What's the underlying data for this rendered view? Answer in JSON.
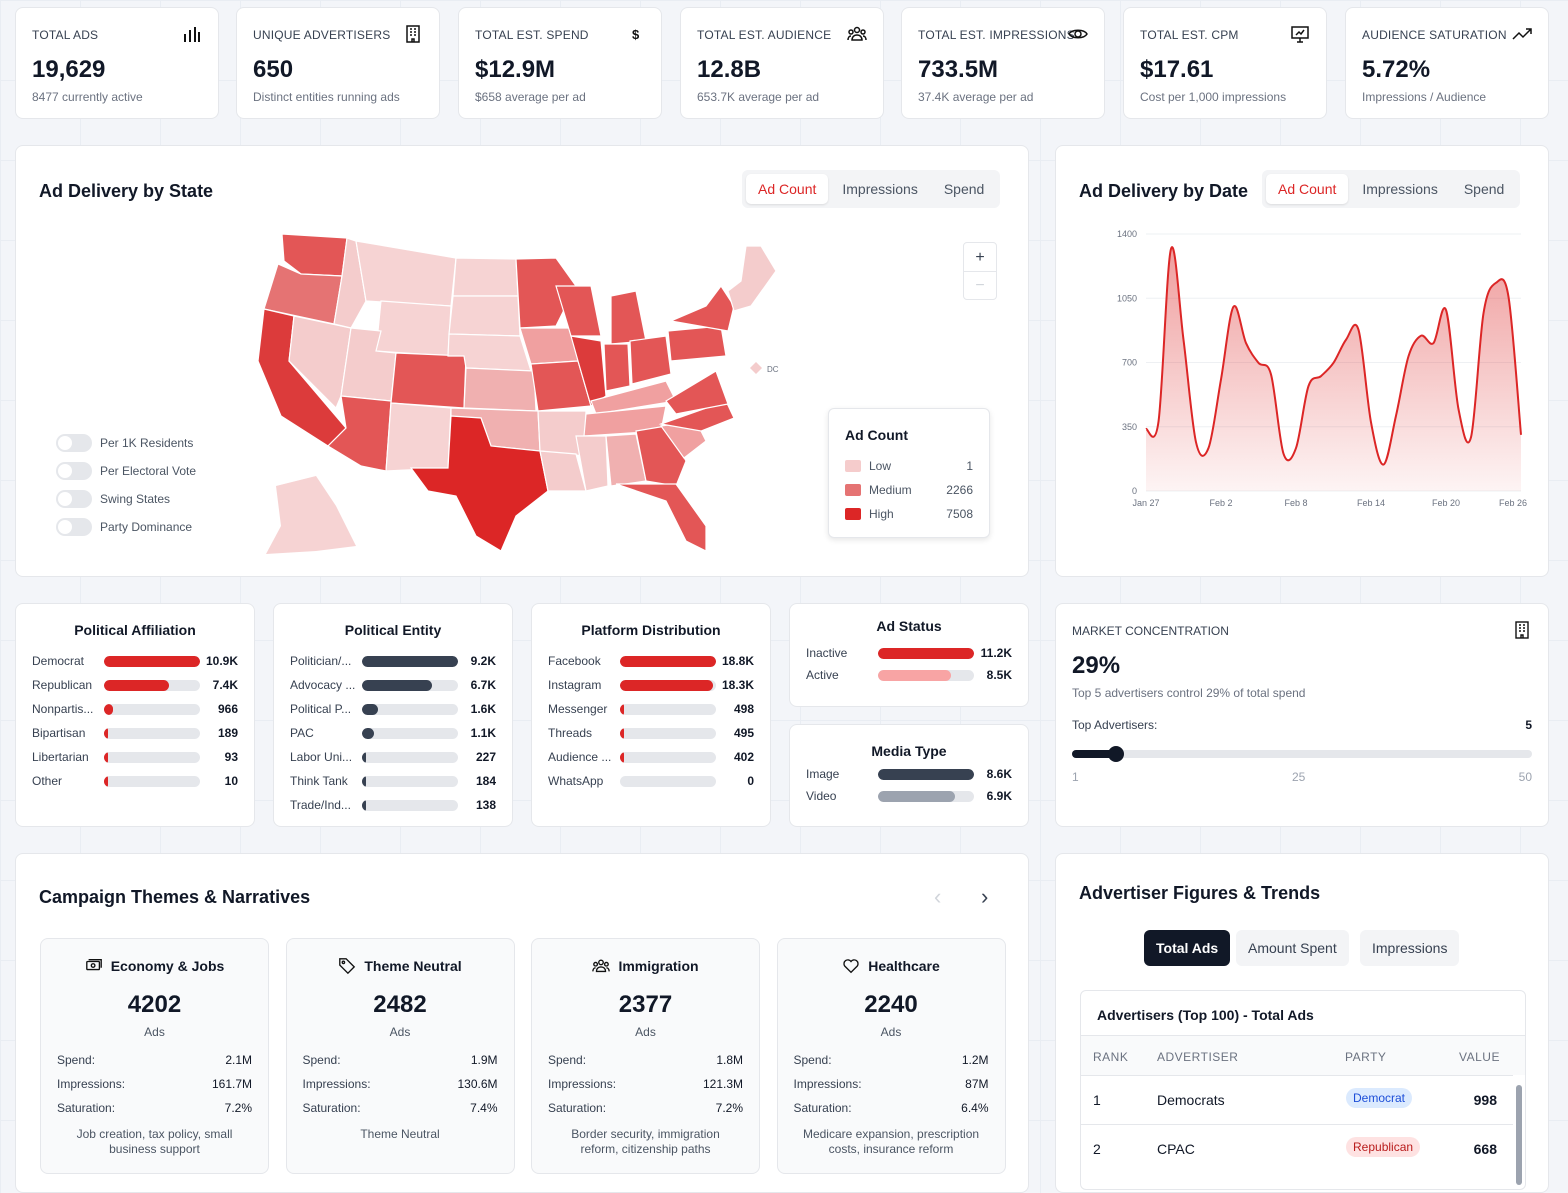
{
  "kpis": [
    {
      "label": "TOTAL ADS",
      "value": "19,629",
      "sub": "8477 currently active",
      "icon": "bar-chart-icon"
    },
    {
      "label": "UNIQUE ADVERTISERS",
      "value": "650",
      "sub": "Distinct entities running ads",
      "icon": "building-icon"
    },
    {
      "label": "TOTAL EST. SPEND",
      "value": "$12.9M",
      "sub": "$658 average per ad",
      "icon": "dollar-icon"
    },
    {
      "label": "TOTAL EST. AUDIENCE",
      "value": "12.8B",
      "sub": "653.7K average per ad",
      "icon": "users-icon"
    },
    {
      "label": "TOTAL EST. IMPRESSIONS",
      "value": "733.5M",
      "sub": "37.4K average per ad",
      "icon": "eye-icon"
    },
    {
      "label": "TOTAL EST. CPM",
      "value": "$17.61",
      "sub": "Cost per 1,000 impressions",
      "icon": "presentation-icon"
    },
    {
      "label": "AUDIENCE SATURATION",
      "value": "5.72%",
      "sub": "Impressions / Audience",
      "icon": "trending-up-icon"
    }
  ],
  "map": {
    "title": "Ad Delivery by State",
    "tabs": [
      "Ad Count",
      "Impressions",
      "Spend"
    ],
    "active_tab": "Ad Count",
    "toggles": [
      "Per 1K Residents",
      "Per Electoral Vote",
      "Swing States",
      "Party Dominance"
    ],
    "zoom_in": "+",
    "zoom_out": "−",
    "dc_label": "DC",
    "legend": {
      "title": "Ad Count",
      "items": [
        {
          "label": "Low",
          "value": "1",
          "color": "#f5cccc"
        },
        {
          "label": "Medium",
          "value": "2266",
          "color": "#e57373"
        },
        {
          "label": "High",
          "value": "7508",
          "color": "#dc2626"
        }
      ]
    }
  },
  "date_chart": {
    "title": "Ad Delivery by Date",
    "tabs": [
      "Ad Count",
      "Impressions",
      "Spend"
    ],
    "active_tab": "Ad Count"
  },
  "chart_data": {
    "type": "area",
    "ylim": [
      0,
      1400
    ],
    "yticks": [
      0,
      350,
      700,
      1050,
      1400
    ],
    "xticks": [
      "Jan 27",
      "Feb 2",
      "Feb 8",
      "Feb 14",
      "Feb 20",
      "Feb 26"
    ],
    "grid": true,
    "color": "#dc2626",
    "x_start": "Jan 27",
    "values": [
      338,
      378,
      1319,
      824,
      266,
      234,
      608,
      1004,
      806,
      698,
      635,
      203,
      234,
      572,
      626,
      698,
      824,
      878,
      374,
      144,
      410,
      734,
      846,
      806,
      986,
      446,
      293,
      968,
      1134,
      1058,
      306
    ]
  },
  "affiliation": {
    "title": "Political Affiliation",
    "color": "#dc2626",
    "items": [
      {
        "label": "Democrat",
        "value": "10.9K",
        "pct": 100
      },
      {
        "label": "Republican",
        "value": "7.4K",
        "pct": 68
      },
      {
        "label": "Nonpartis...",
        "value": "966",
        "pct": 9
      },
      {
        "label": "Bipartisan",
        "value": "189",
        "pct": 2
      },
      {
        "label": "Libertarian",
        "value": "93",
        "pct": 1
      },
      {
        "label": "Other",
        "value": "10",
        "pct": 0.5
      }
    ]
  },
  "entity": {
    "title": "Political Entity",
    "color": "#374151",
    "items": [
      {
        "label": "Politician/...",
        "value": "9.2K",
        "pct": 100
      },
      {
        "label": "Advocacy ...",
        "value": "6.7K",
        "pct": 73
      },
      {
        "label": "Political P...",
        "value": "1.6K",
        "pct": 17
      },
      {
        "label": "PAC",
        "value": "1.1K",
        "pct": 12
      },
      {
        "label": "Labor Uni...",
        "value": "227",
        "pct": 2
      },
      {
        "label": "Think Tank",
        "value": "184",
        "pct": 2
      },
      {
        "label": "Trade/Ind...",
        "value": "138",
        "pct": 1.5
      }
    ]
  },
  "platform": {
    "title": "Platform Distribution",
    "color": "#dc2626",
    "items": [
      {
        "label": "Facebook",
        "value": "18.8K",
        "pct": 100
      },
      {
        "label": "Instagram",
        "value": "18.3K",
        "pct": 97
      },
      {
        "label": "Messenger",
        "value": "498",
        "pct": 3
      },
      {
        "label": "Threads",
        "value": "495",
        "pct": 3
      },
      {
        "label": "Audience ...",
        "value": "402",
        "pct": 2
      },
      {
        "label": "WhatsApp",
        "value": "0",
        "pct": 0
      }
    ]
  },
  "status": {
    "title": "Ad Status",
    "items": [
      {
        "label": "Inactive",
        "value": "11.2K",
        "pct": 100,
        "color": "#dc2626"
      },
      {
        "label": "Active",
        "value": "8.5K",
        "pct": 76,
        "color": "#f8a4a4"
      }
    ]
  },
  "media": {
    "title": "Media Type",
    "items": [
      {
        "label": "Image",
        "value": "8.6K",
        "pct": 100,
        "color": "#374151"
      },
      {
        "label": "Video",
        "value": "6.9K",
        "pct": 80,
        "color": "#9ca3af"
      }
    ]
  },
  "market": {
    "label": "MARKET CONCENTRATION",
    "value": "29%",
    "sub": "Top 5 advertisers control 29% of total spend",
    "slider_label": "Top Advertisers:",
    "slider_value": "5",
    "slider_min": "1",
    "slider_mid": "25",
    "slider_max": "50",
    "icon": "building-icon"
  },
  "themes": {
    "title": "Campaign Themes & Narratives",
    "items": [
      {
        "name": "Economy & Jobs",
        "icon": "money-icon",
        "count": "4202",
        "unit": "Ads",
        "spend": "2.1M",
        "impressions": "161.7M",
        "saturation": "7.2%",
        "desc": "Job creation, tax policy, small business support"
      },
      {
        "name": "Theme Neutral",
        "icon": "tag-icon",
        "count": "2482",
        "unit": "Ads",
        "spend": "1.9M",
        "impressions": "130.6M",
        "saturation": "7.4%",
        "desc": "Theme Neutral"
      },
      {
        "name": "Immigration",
        "icon": "users-icon",
        "count": "2377",
        "unit": "Ads",
        "spend": "1.8M",
        "impressions": "121.3M",
        "saturation": "7.2%",
        "desc": "Border security, immigration reform, citizenship paths"
      },
      {
        "name": "Healthcare",
        "icon": "heart-icon",
        "count": "2240",
        "unit": "Ads",
        "spend": "1.2M",
        "impressions": "87M",
        "saturation": "6.4%",
        "desc": "Medicare expansion, prescription costs, insurance reform"
      }
    ],
    "labels": {
      "spend": "Spend:",
      "impressions": "Impressions:",
      "saturation": "Saturation:"
    }
  },
  "advertisers": {
    "title": "Advertiser Figures & Trends",
    "buttons": [
      "Total Ads",
      "Amount Spent",
      "Impressions"
    ],
    "active": "Total Ads",
    "table_title": "Advertisers (Top 100) - Total Ads",
    "columns": [
      "RANK",
      "ADVERTISER",
      "PARTY",
      "VALUE"
    ],
    "rows": [
      {
        "rank": "1",
        "name": "Democrats",
        "party": "Democrat",
        "value": "998"
      },
      {
        "rank": "2",
        "name": "CPAC",
        "party": "Republican",
        "value": "668"
      }
    ]
  }
}
